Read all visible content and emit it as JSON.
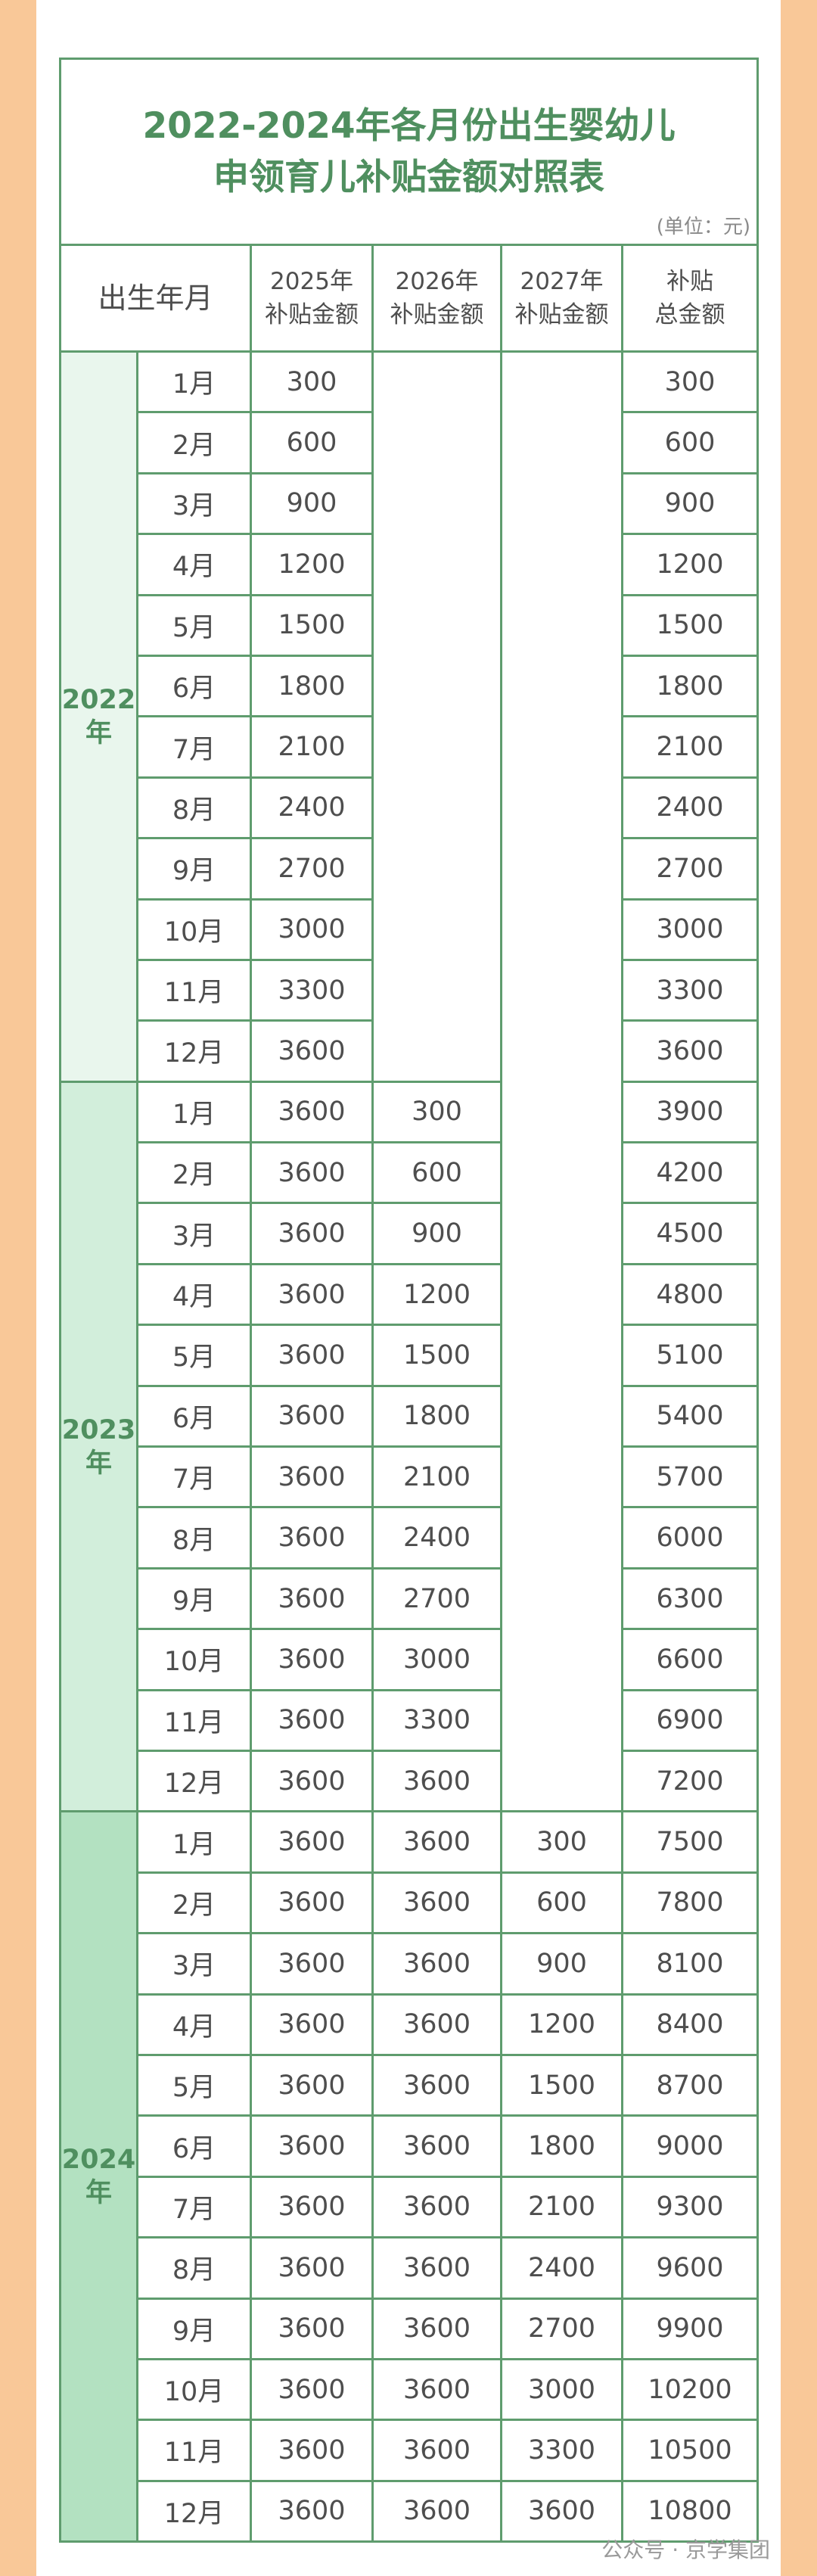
{
  "title": [
    "2022-2024年各月份出生婴幼儿",
    "申领育儿补贴金额对照表"
  ],
  "unit": "(单位：元)",
  "headers": [
    [
      "出生年月"
    ],
    [
      "2025年",
      "补贴金额"
    ],
    [
      "2026年",
      "补贴金额"
    ],
    [
      "2027年",
      "补贴金额"
    ],
    [
      "补贴",
      "总金额"
    ]
  ],
  "groups": [
    {
      "label": [
        "2022",
        "年"
      ],
      "rows": [
        {
          "month": "1月",
          "y2025": 300,
          "total": 300
        },
        {
          "month": "2月",
          "y2025": 600,
          "total": 600
        },
        {
          "month": "3月",
          "y2025": 900,
          "total": 900
        },
        {
          "month": "4月",
          "y2025": 1200,
          "total": 1200
        },
        {
          "month": "5月",
          "y2025": 1500,
          "total": 1500
        },
        {
          "month": "6月",
          "y2025": 1800,
          "total": 1800
        },
        {
          "month": "7月",
          "y2025": 2100,
          "total": 2100
        },
        {
          "month": "8月",
          "y2025": 2400,
          "total": 2400
        },
        {
          "month": "9月",
          "y2025": 2700,
          "total": 2700
        },
        {
          "month": "10月",
          "y2025": 3000,
          "total": 3000
        },
        {
          "month": "11月",
          "y2025": 3300,
          "total": 3300
        },
        {
          "month": "12月",
          "y2025": 3600,
          "total": 3600
        }
      ]
    },
    {
      "label": [
        "2023",
        "年"
      ],
      "rows": [
        {
          "month": "1月",
          "y2025": 3600,
          "y2026": 300,
          "total": 3900
        },
        {
          "month": "2月",
          "y2025": 3600,
          "y2026": 600,
          "total": 4200
        },
        {
          "month": "3月",
          "y2025": 3600,
          "y2026": 900,
          "total": 4500
        },
        {
          "month": "4月",
          "y2025": 3600,
          "y2026": 1200,
          "total": 4800
        },
        {
          "month": "5月",
          "y2025": 3600,
          "y2026": 1500,
          "total": 5100
        },
        {
          "month": "6月",
          "y2025": 3600,
          "y2026": 1800,
          "total": 5400
        },
        {
          "month": "7月",
          "y2025": 3600,
          "y2026": 2100,
          "total": 5700
        },
        {
          "month": "8月",
          "y2025": 3600,
          "y2026": 2400,
          "total": 6000
        },
        {
          "month": "9月",
          "y2025": 3600,
          "y2026": 2700,
          "total": 6300
        },
        {
          "month": "10月",
          "y2025": 3600,
          "y2026": 3000,
          "total": 6600
        },
        {
          "month": "11月",
          "y2025": 3600,
          "y2026": 3300,
          "total": 6900
        },
        {
          "month": "12月",
          "y2025": 3600,
          "y2026": 3600,
          "total": 7200
        }
      ]
    },
    {
      "label": [
        "2024",
        "年"
      ],
      "rows": [
        {
          "month": "1月",
          "y2025": 3600,
          "y2026": 3600,
          "y2027": 300,
          "total": 7500
        },
        {
          "month": "2月",
          "y2025": 3600,
          "y2026": 3600,
          "y2027": 600,
          "total": 7800
        },
        {
          "month": "3月",
          "y2025": 3600,
          "y2026": 3600,
          "y2027": 900,
          "total": 8100
        },
        {
          "month": "4月",
          "y2025": 3600,
          "y2026": 3600,
          "y2027": 1200,
          "total": 8400
        },
        {
          "month": "5月",
          "y2025": 3600,
          "y2026": 3600,
          "y2027": 1500,
          "total": 8700
        },
        {
          "month": "6月",
          "y2025": 3600,
          "y2026": 3600,
          "y2027": 1800,
          "total": 9000
        },
        {
          "month": "7月",
          "y2025": 3600,
          "y2026": 3600,
          "y2027": 2100,
          "total": 9300
        },
        {
          "month": "8月",
          "y2025": 3600,
          "y2026": 3600,
          "y2027": 2400,
          "total": 9600
        },
        {
          "month": "9月",
          "y2025": 3600,
          "y2026": 3600,
          "y2027": 2700,
          "total": 9900
        },
        {
          "month": "10月",
          "y2025": 3600,
          "y2026": 3600,
          "y2027": 3000,
          "total": 10200
        },
        {
          "month": "11月",
          "y2025": 3600,
          "y2026": 3600,
          "y2027": 3300,
          "total": 10500
        },
        {
          "month": "12月",
          "y2025": 3600,
          "y2026": 3600,
          "y2027": 3600,
          "total": 10800
        }
      ]
    }
  ],
  "watermark": "公众号 · 京学集团"
}
